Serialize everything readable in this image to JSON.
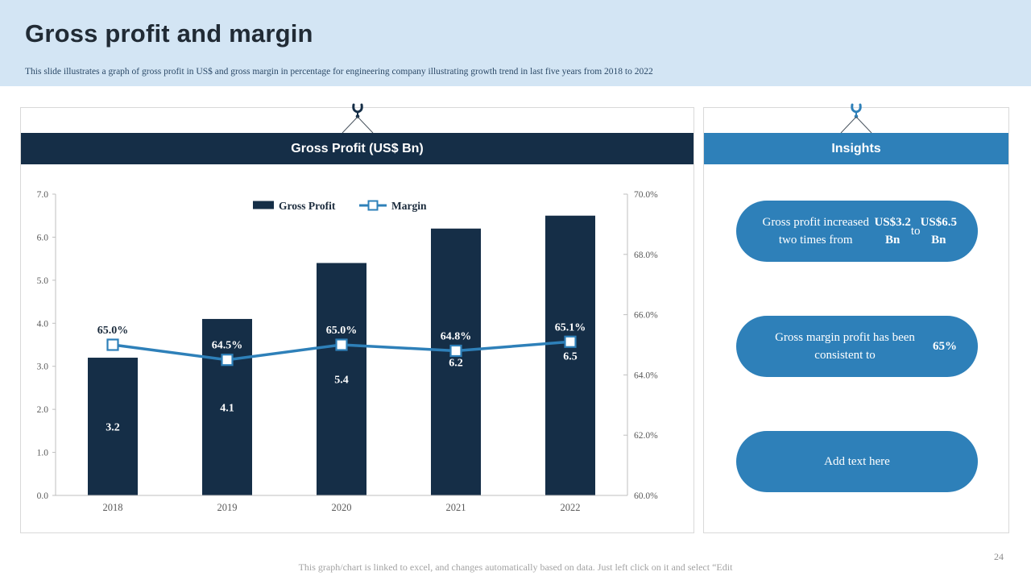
{
  "slide": {
    "title": "Gross profit and margin",
    "subtitle": "This slide illustrates a graph of gross profit in US$ and gross margin in percentage for engineering company illustrating growth trend in last five years from 2018 to 2022",
    "footer_note": "This graph/chart is linked to excel, and changes automatically based on data. Just left click on it and select “Edit",
    "page_number": "24"
  },
  "colors": {
    "navy": "#152e47",
    "blue": "#2e80b9",
    "band": "#d3e5f4",
    "axis_line": "#bfbfbf",
    "axis_text": "#595959",
    "dark_label": "#1b2b3c",
    "white": "#ffffff"
  },
  "chart_panel": {
    "header": "Gross Profit (US$ Bn)",
    "crane_icon": "crane-hook-icon"
  },
  "insights": {
    "header": "Insights",
    "crane_icon": "crane-hook-icon",
    "pills": [
      {
        "segments": [
          {
            "t": "Gross profit increased two times from ",
            "b": false
          },
          {
            "t": "US$3.2 Bn",
            "b": true
          },
          {
            "t": " to ",
            "b": false
          },
          {
            "t": "US$6.5 Bn",
            "b": true
          }
        ]
      },
      {
        "segments": [
          {
            "t": "Gross margin profit has been consistent to ",
            "b": false
          },
          {
            "t": "65%",
            "b": true
          }
        ]
      },
      {
        "segments": [
          {
            "t": "Add text here",
            "b": false
          }
        ]
      }
    ]
  },
  "chart_data": {
    "type": "bar",
    "subtype": "bar-line-combo",
    "categories": [
      "2018",
      "2019",
      "2020",
      "2021",
      "2022"
    ],
    "series": [
      {
        "name": "Gross Profit",
        "type": "bar",
        "axis": "left",
        "values": [
          3.2,
          4.1,
          5.4,
          6.2,
          6.5
        ],
        "labels": [
          "3.2",
          "4.1",
          "5.4",
          "6.2",
          "6.5"
        ]
      },
      {
        "name": "Margin",
        "type": "line",
        "axis": "right",
        "values": [
          65.0,
          64.5,
          65.0,
          64.8,
          65.1
        ],
        "labels": [
          "65.0%",
          "64.5%",
          "65.0%",
          "64.8%",
          "65.1%"
        ]
      }
    ],
    "left_axis": {
      "min": 0,
      "max": 7,
      "ticks": [
        "0.0",
        "1.0",
        "2.0",
        "3.0",
        "4.0",
        "5.0",
        "6.0",
        "7.0"
      ]
    },
    "right_axis": {
      "min": 60,
      "max": 70,
      "ticks": [
        "60.0%",
        "62.0%",
        "64.0%",
        "66.0%",
        "68.0%",
        "70.0%"
      ]
    },
    "legend": [
      "Gross Profit",
      "Margin"
    ],
    "legend_position": "top",
    "grid": false
  }
}
